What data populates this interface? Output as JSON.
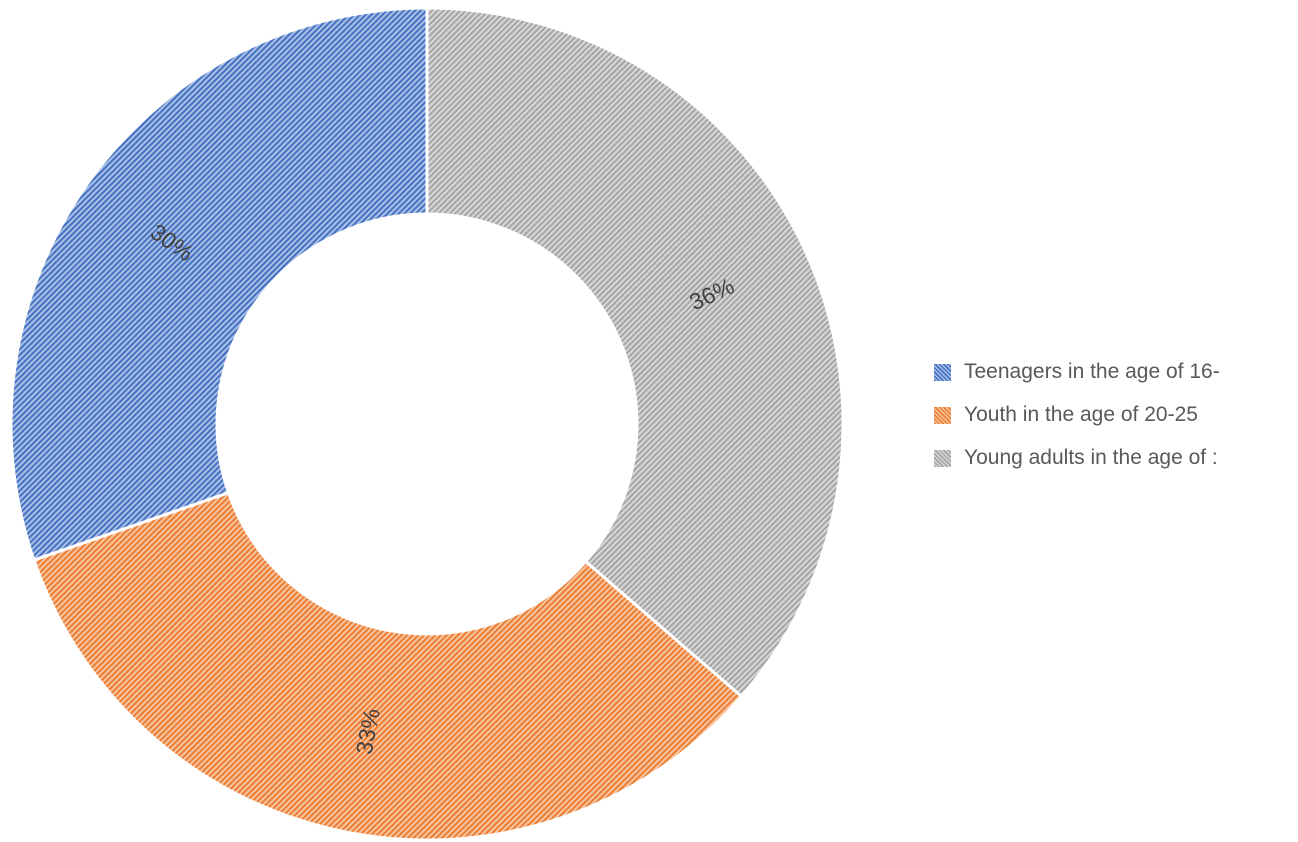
{
  "chart_data": {
    "type": "pie",
    "variant": "donut",
    "title": "",
    "categories": [
      "Teenagers in the age of 16-",
      "Youth in the age of 20-25",
      "Young adults in the age of :"
    ],
    "values": [
      30,
      33,
      36
    ],
    "labels": [
      "30%",
      "33%",
      "36%"
    ],
    "colors": [
      "#4472c4",
      "#ed7d31",
      "#a5a5a5"
    ],
    "fill_pattern": "diagonal-hatch",
    "legend_position": "right",
    "slice_order": "clockwise from 12 o'clock: Young adults, Youth, Teenagers"
  }
}
